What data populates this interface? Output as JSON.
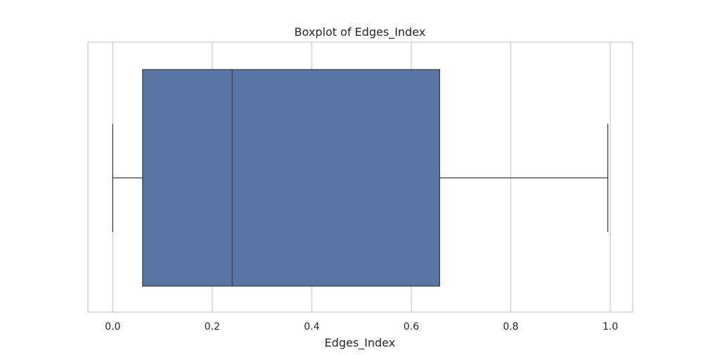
{
  "chart_data": {
    "type": "box",
    "title": "Boxplot of Edges_Index",
    "xlabel": "Edges_Index",
    "ylabel": "",
    "orientation": "horizontal",
    "xlim": [
      -0.05,
      1.045
    ],
    "xticks": [
      0.0,
      0.2,
      0.4,
      0.6,
      0.8,
      1.0
    ],
    "xtick_labels": [
      "0.0",
      "0.2",
      "0.4",
      "0.6",
      "0.8",
      "1.0"
    ],
    "grid": "vertical",
    "box": {
      "whisker_low": 0.0,
      "q1": 0.06,
      "median": 0.24,
      "q3": 0.657,
      "whisker_high": 0.995
    },
    "colors": {
      "box_fill": "#5975a4",
      "box_edge": "#3d3d3d",
      "grid": "#cccccc",
      "frame": "#cccccc"
    }
  }
}
